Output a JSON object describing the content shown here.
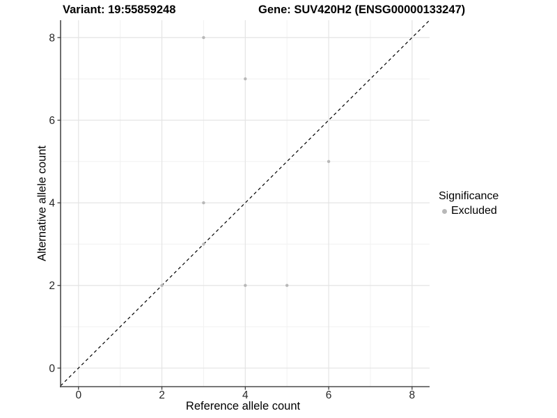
{
  "header": {
    "variant_label": "Variant: 19:55859248",
    "gene_label": "Gene: SUV420H2 (ENSG00000133247)"
  },
  "chart_data": {
    "type": "scatter",
    "title": "Variant: 19:55859248   Gene: SUV420H2 (ENSG00000133247)",
    "xlabel": "Reference allele count",
    "ylabel": "Alternative allele count",
    "xlim": [
      -0.43,
      8.42
    ],
    "ylim": [
      -0.45,
      8.42
    ],
    "x_ticks": [
      0,
      2,
      4,
      6,
      8
    ],
    "y_ticks": [
      0,
      2,
      4,
      6,
      8
    ],
    "x_minor": [
      1,
      3,
      5,
      7
    ],
    "y_minor": [
      1,
      3,
      5,
      7
    ],
    "grid": {
      "major_color": "#e4e4e4",
      "minor_color": "#f1f1f1",
      "on": true
    },
    "axis_color": "#4a4a4a",
    "tick_color": "#333333",
    "point_color": "#b8b8b8",
    "point_radius": 2.2,
    "identity_line": {
      "slope": 1,
      "intercept": 0,
      "style": "dashed",
      "color": "#000000"
    },
    "points": [
      {
        "x": 3,
        "y": 8,
        "significance": "Excluded"
      },
      {
        "x": 4,
        "y": 7,
        "significance": "Excluded"
      },
      {
        "x": 6,
        "y": 5,
        "significance": "Excluded"
      },
      {
        "x": 3,
        "y": 4,
        "significance": "Excluded"
      },
      {
        "x": 3,
        "y": 3,
        "significance": "Excluded"
      },
      {
        "x": 2,
        "y": 2,
        "significance": "Excluded"
      },
      {
        "x": 4,
        "y": 2,
        "significance": "Excluded"
      },
      {
        "x": 5,
        "y": 2,
        "significance": "Excluded"
      }
    ],
    "legend": {
      "title": "Significance",
      "position": "right",
      "entries": [
        {
          "label": "Excluded",
          "color": "#b8b8b8"
        }
      ]
    }
  }
}
